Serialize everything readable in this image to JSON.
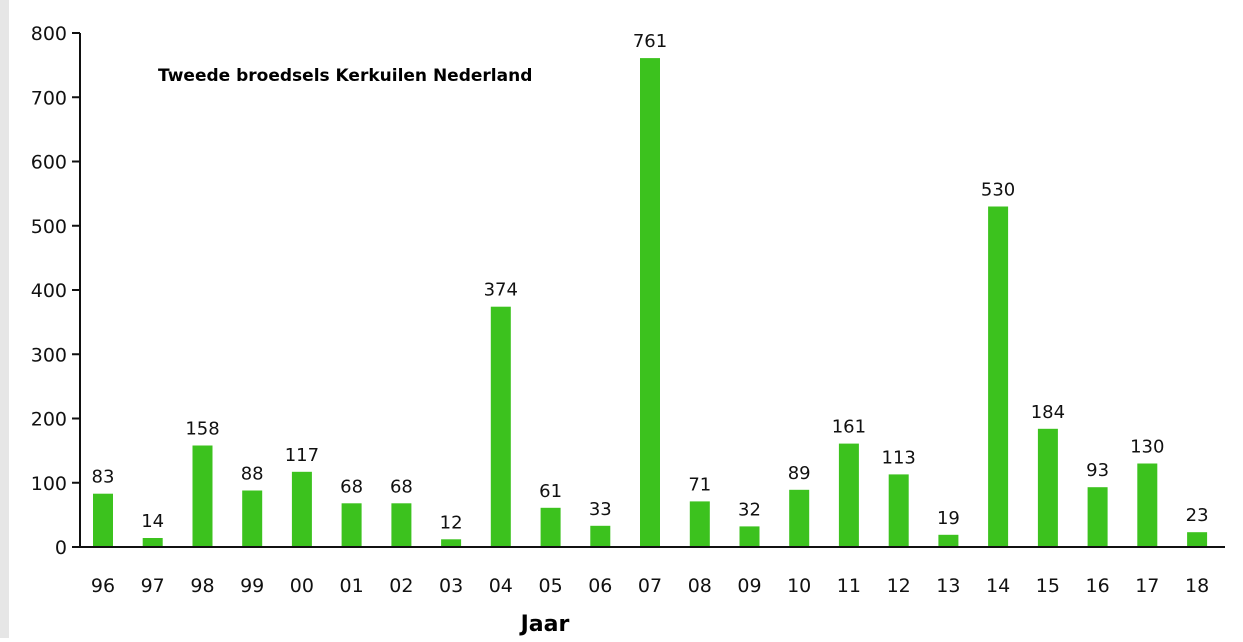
{
  "chart_data": {
    "type": "bar",
    "title": "Tweede broedsels Kerkuilen Nederland",
    "xlabel": "Jaar",
    "ylabel": "",
    "categories": [
      "96",
      "97",
      "98",
      "99",
      "00",
      "01",
      "02",
      "03",
      "04",
      "05",
      "06",
      "07",
      "08",
      "09",
      "10",
      "11",
      "12",
      "13",
      "14",
      "15",
      "16",
      "17",
      "18"
    ],
    "values": [
      83,
      14,
      158,
      88,
      117,
      68,
      68,
      12,
      374,
      61,
      33,
      761,
      71,
      32,
      89,
      161,
      113,
      19,
      530,
      184,
      93,
      130,
      23
    ],
    "data_labels": [
      "83",
      "14",
      "158",
      "88",
      "117",
      "68",
      "68",
      "12",
      "374",
      "61",
      "33",
      "761",
      "71",
      "32",
      "89",
      "161",
      "113",
      "19",
      "530",
      "184",
      "93",
      "130",
      "23"
    ],
    "ylim": [
      0,
      800
    ],
    "yticks": [
      "0",
      "100",
      "200",
      "300",
      "400",
      "500",
      "600",
      "700",
      "800"
    ],
    "bar_color": "#3cc21e",
    "grid": false,
    "legend": "none"
  }
}
